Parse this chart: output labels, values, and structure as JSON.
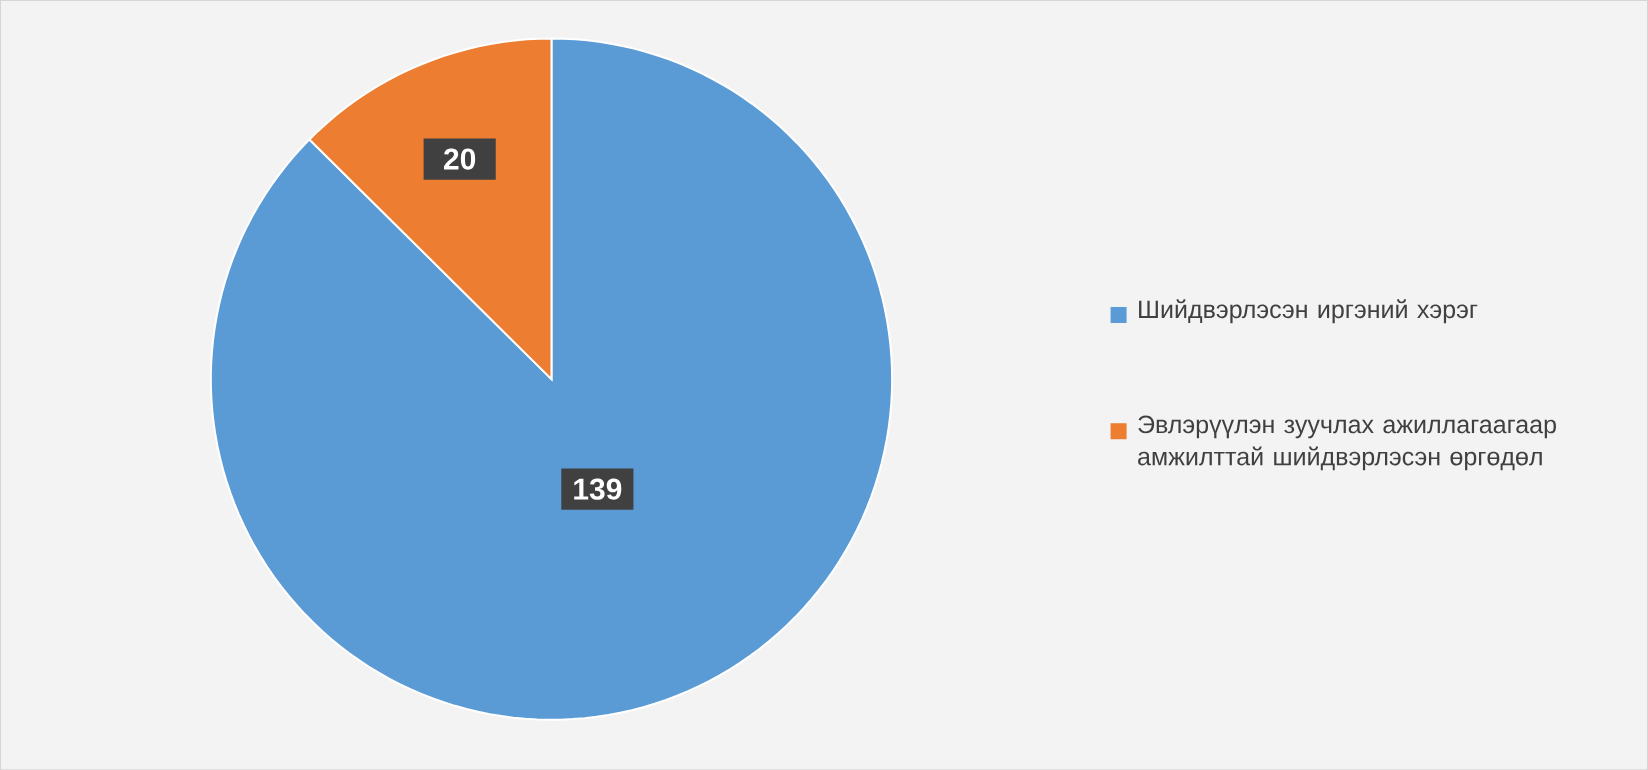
{
  "chart_data": {
    "type": "pie",
    "categories": [
      "Шийдвэрлэсэн иргэний хэрэг",
      "Эвлэрүүлэн зуучлах ажиллагаагаар амжилттай шийдвэрлэсэн өргөдөл"
    ],
    "values": [
      139,
      20
    ],
    "colors": [
      "#5b9bd5",
      "#ed7d31"
    ],
    "data_labels": true,
    "legend": "right"
  }
}
